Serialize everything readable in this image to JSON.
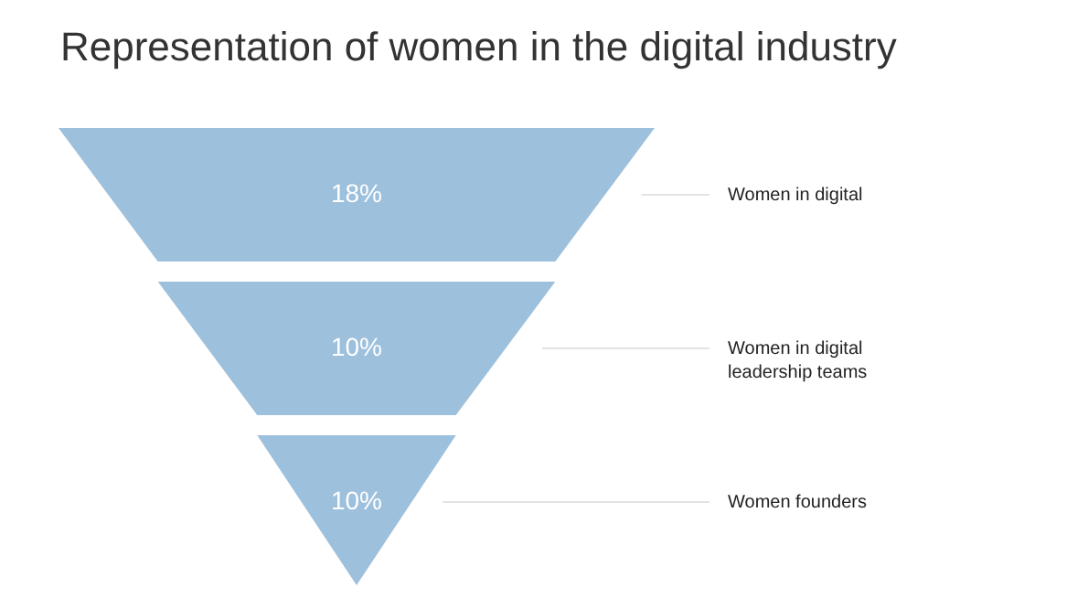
{
  "chart_data": {
    "type": "other",
    "title": "Representation of women in the digital industry",
    "categories": [
      "Women in digital",
      "Women in digital leadership teams",
      "Women founders"
    ],
    "values": [
      18,
      10,
      10
    ],
    "value_labels": [
      "18%",
      "10%",
      "10%"
    ],
    "colors": [
      "#9dc0dd",
      "#9dc0dd",
      "#9dc0dd"
    ]
  }
}
